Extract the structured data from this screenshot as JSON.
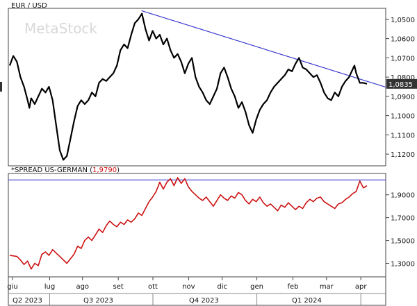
{
  "chart_data": [
    {
      "type": "line",
      "title": "EUR / USD",
      "y_inverted": true,
      "ylim": [
        1.045,
        1.125
      ],
      "yticks": [
        "1,0500",
        "1,0600",
        "1,0700",
        "1,0800",
        "1,0900",
        "1,1000",
        "1,1100",
        "1,1200"
      ],
      "ytick_values": [
        1.05,
        1.06,
        1.07,
        1.08,
        1.09,
        1.1,
        1.11,
        1.12
      ],
      "last_value": "1,0835",
      "series_color": "#000000",
      "trendline": {
        "color": "#3a3ad0",
        "points": [
          {
            "x": 0.369,
            "y": 1.0455
          },
          {
            "x": 1.0,
            "y": 1.0852
          }
        ]
      },
      "series": [
        {
          "x": 0.0,
          "y": 1.074
        },
        {
          "x": 0.01,
          "y": 1.069
        },
        {
          "x": 0.02,
          "y": 1.072
        },
        {
          "x": 0.03,
          "y": 1.08
        },
        {
          "x": 0.04,
          "y": 1.085
        },
        {
          "x": 0.05,
          "y": 1.092
        },
        {
          "x": 0.055,
          "y": 1.096
        },
        {
          "x": 0.06,
          "y": 1.091
        },
        {
          "x": 0.07,
          "y": 1.094
        },
        {
          "x": 0.08,
          "y": 1.09
        },
        {
          "x": 0.09,
          "y": 1.086
        },
        {
          "x": 0.1,
          "y": 1.088
        },
        {
          "x": 0.11,
          "y": 1.085
        },
        {
          "x": 0.12,
          "y": 1.092
        },
        {
          "x": 0.13,
          "y": 1.105
        },
        {
          "x": 0.14,
          "y": 1.118
        },
        {
          "x": 0.15,
          "y": 1.123
        },
        {
          "x": 0.16,
          "y": 1.121
        },
        {
          "x": 0.17,
          "y": 1.112
        },
        {
          "x": 0.18,
          "y": 1.103
        },
        {
          "x": 0.19,
          "y": 1.095
        },
        {
          "x": 0.2,
          "y": 1.092
        },
        {
          "x": 0.21,
          "y": 1.094
        },
        {
          "x": 0.22,
          "y": 1.092
        },
        {
          "x": 0.23,
          "y": 1.088
        },
        {
          "x": 0.24,
          "y": 1.09
        },
        {
          "x": 0.25,
          "y": 1.083
        },
        {
          "x": 0.26,
          "y": 1.081
        },
        {
          "x": 0.27,
          "y": 1.082
        },
        {
          "x": 0.28,
          "y": 1.08
        },
        {
          "x": 0.29,
          "y": 1.078
        },
        {
          "x": 0.3,
          "y": 1.074
        },
        {
          "x": 0.31,
          "y": 1.066
        },
        {
          "x": 0.32,
          "y": 1.063
        },
        {
          "x": 0.33,
          "y": 1.065
        },
        {
          "x": 0.34,
          "y": 1.058
        },
        {
          "x": 0.35,
          "y": 1.052
        },
        {
          "x": 0.36,
          "y": 1.05
        },
        {
          "x": 0.37,
          "y": 1.047
        },
        {
          "x": 0.38,
          "y": 1.055
        },
        {
          "x": 0.39,
          "y": 1.061
        },
        {
          "x": 0.4,
          "y": 1.056
        },
        {
          "x": 0.41,
          "y": 1.06
        },
        {
          "x": 0.42,
          "y": 1.058
        },
        {
          "x": 0.43,
          "y": 1.063
        },
        {
          "x": 0.44,
          "y": 1.06
        },
        {
          "x": 0.45,
          "y": 1.066
        },
        {
          "x": 0.46,
          "y": 1.07
        },
        {
          "x": 0.47,
          "y": 1.068
        },
        {
          "x": 0.48,
          "y": 1.072
        },
        {
          "x": 0.49,
          "y": 1.078
        },
        {
          "x": 0.5,
          "y": 1.073
        },
        {
          "x": 0.51,
          "y": 1.07
        },
        {
          "x": 0.52,
          "y": 1.08
        },
        {
          "x": 0.53,
          "y": 1.085
        },
        {
          "x": 0.54,
          "y": 1.088
        },
        {
          "x": 0.55,
          "y": 1.092
        },
        {
          "x": 0.56,
          "y": 1.094
        },
        {
          "x": 0.57,
          "y": 1.09
        },
        {
          "x": 0.58,
          "y": 1.086
        },
        {
          "x": 0.59,
          "y": 1.078
        },
        {
          "x": 0.6,
          "y": 1.075
        },
        {
          "x": 0.61,
          "y": 1.08
        },
        {
          "x": 0.62,
          "y": 1.086
        },
        {
          "x": 0.63,
          "y": 1.09
        },
        {
          "x": 0.64,
          "y": 1.096
        },
        {
          "x": 0.65,
          "y": 1.093
        },
        {
          "x": 0.66,
          "y": 1.098
        },
        {
          "x": 0.67,
          "y": 1.105
        },
        {
          "x": 0.68,
          "y": 1.109
        },
        {
          "x": 0.69,
          "y": 1.102
        },
        {
          "x": 0.7,
          "y": 1.097
        },
        {
          "x": 0.71,
          "y": 1.094
        },
        {
          "x": 0.72,
          "y": 1.092
        },
        {
          "x": 0.73,
          "y": 1.088
        },
        {
          "x": 0.74,
          "y": 1.085
        },
        {
          "x": 0.75,
          "y": 1.083
        },
        {
          "x": 0.76,
          "y": 1.081
        },
        {
          "x": 0.77,
          "y": 1.079
        },
        {
          "x": 0.78,
          "y": 1.076
        },
        {
          "x": 0.79,
          "y": 1.077
        },
        {
          "x": 0.8,
          "y": 1.073
        },
        {
          "x": 0.81,
          "y": 1.07
        },
        {
          "x": 0.82,
          "y": 1.075
        },
        {
          "x": 0.83,
          "y": 1.076
        },
        {
          "x": 0.84,
          "y": 1.078
        },
        {
          "x": 0.85,
          "y": 1.08
        },
        {
          "x": 0.86,
          "y": 1.079
        },
        {
          "x": 0.87,
          "y": 1.083
        },
        {
          "x": 0.88,
          "y": 1.088
        },
        {
          "x": 0.89,
          "y": 1.091
        },
        {
          "x": 0.9,
          "y": 1.092
        },
        {
          "x": 0.91,
          "y": 1.088
        },
        {
          "x": 0.92,
          "y": 1.09
        },
        {
          "x": 0.93,
          "y": 1.085
        },
        {
          "x": 0.94,
          "y": 1.082
        },
        {
          "x": 0.95,
          "y": 1.08
        },
        {
          "x": 0.96,
          "y": 1.076
        },
        {
          "x": 0.965,
          "y": 1.074
        },
        {
          "x": 0.97,
          "y": 1.078
        },
        {
          "x": 0.98,
          "y": 1.083
        },
        {
          "x": 0.99,
          "y": 1.083
        },
        {
          "x": 1.0,
          "y": 1.0835
        }
      ]
    },
    {
      "type": "line",
      "title": "*SPREAD US-GERMAN",
      "last_value": "1,9790",
      "ylim": [
        1.2,
        2.05
      ],
      "yticks": [
        "1,9000",
        "1,7000",
        "1,5000",
        "1,3000"
      ],
      "ytick_values": [
        1.9,
        1.7,
        1.5,
        1.3
      ],
      "series_color": "#cc1111",
      "reference_line": {
        "y": 2.03,
        "color": "#3a3ad0"
      },
      "series": [
        {
          "x": 0.0,
          "y": 1.37
        },
        {
          "x": 0.02,
          "y": 1.36
        },
        {
          "x": 0.03,
          "y": 1.33
        },
        {
          "x": 0.04,
          "y": 1.29
        },
        {
          "x": 0.05,
          "y": 1.32
        },
        {
          "x": 0.06,
          "y": 1.25
        },
        {
          "x": 0.07,
          "y": 1.3
        },
        {
          "x": 0.08,
          "y": 1.28
        },
        {
          "x": 0.09,
          "y": 1.38
        },
        {
          "x": 0.1,
          "y": 1.4
        },
        {
          "x": 0.11,
          "y": 1.37
        },
        {
          "x": 0.12,
          "y": 1.42
        },
        {
          "x": 0.13,
          "y": 1.39
        },
        {
          "x": 0.14,
          "y": 1.36
        },
        {
          "x": 0.15,
          "y": 1.33
        },
        {
          "x": 0.16,
          "y": 1.3
        },
        {
          "x": 0.17,
          "y": 1.34
        },
        {
          "x": 0.18,
          "y": 1.38
        },
        {
          "x": 0.19,
          "y": 1.45
        },
        {
          "x": 0.2,
          "y": 1.43
        },
        {
          "x": 0.21,
          "y": 1.5
        },
        {
          "x": 0.22,
          "y": 1.53
        },
        {
          "x": 0.23,
          "y": 1.5
        },
        {
          "x": 0.24,
          "y": 1.55
        },
        {
          "x": 0.25,
          "y": 1.6
        },
        {
          "x": 0.26,
          "y": 1.57
        },
        {
          "x": 0.27,
          "y": 1.63
        },
        {
          "x": 0.28,
          "y": 1.67
        },
        {
          "x": 0.29,
          "y": 1.64
        },
        {
          "x": 0.3,
          "y": 1.62
        },
        {
          "x": 0.31,
          "y": 1.66
        },
        {
          "x": 0.32,
          "y": 1.64
        },
        {
          "x": 0.33,
          "y": 1.68
        },
        {
          "x": 0.34,
          "y": 1.66
        },
        {
          "x": 0.35,
          "y": 1.69
        },
        {
          "x": 0.36,
          "y": 1.74
        },
        {
          "x": 0.37,
          "y": 1.72
        },
        {
          "x": 0.38,
          "y": 1.78
        },
        {
          "x": 0.39,
          "y": 1.84
        },
        {
          "x": 0.4,
          "y": 1.88
        },
        {
          "x": 0.41,
          "y": 1.93
        },
        {
          "x": 0.42,
          "y": 2.01
        },
        {
          "x": 0.43,
          "y": 1.95
        },
        {
          "x": 0.44,
          "y": 2.01
        },
        {
          "x": 0.45,
          "y": 2.04
        },
        {
          "x": 0.46,
          "y": 1.98
        },
        {
          "x": 0.47,
          "y": 2.05
        },
        {
          "x": 0.48,
          "y": 2.0
        },
        {
          "x": 0.49,
          "y": 2.04
        },
        {
          "x": 0.5,
          "y": 1.97
        },
        {
          "x": 0.51,
          "y": 1.93
        },
        {
          "x": 0.52,
          "y": 1.9
        },
        {
          "x": 0.53,
          "y": 1.87
        },
        {
          "x": 0.54,
          "y": 1.85
        },
        {
          "x": 0.55,
          "y": 1.88
        },
        {
          "x": 0.56,
          "y": 1.84
        },
        {
          "x": 0.57,
          "y": 1.8
        },
        {
          "x": 0.58,
          "y": 1.85
        },
        {
          "x": 0.59,
          "y": 1.9
        },
        {
          "x": 0.6,
          "y": 1.87
        },
        {
          "x": 0.61,
          "y": 1.85
        },
        {
          "x": 0.62,
          "y": 1.89
        },
        {
          "x": 0.63,
          "y": 1.87
        },
        {
          "x": 0.64,
          "y": 1.92
        },
        {
          "x": 0.65,
          "y": 1.9
        },
        {
          "x": 0.66,
          "y": 1.85
        },
        {
          "x": 0.67,
          "y": 1.82
        },
        {
          "x": 0.68,
          "y": 1.86
        },
        {
          "x": 0.69,
          "y": 1.84
        },
        {
          "x": 0.7,
          "y": 1.88
        },
        {
          "x": 0.71,
          "y": 1.83
        },
        {
          "x": 0.72,
          "y": 1.8
        },
        {
          "x": 0.73,
          "y": 1.82
        },
        {
          "x": 0.74,
          "y": 1.79
        },
        {
          "x": 0.75,
          "y": 1.76
        },
        {
          "x": 0.76,
          "y": 1.81
        },
        {
          "x": 0.77,
          "y": 1.79
        },
        {
          "x": 0.78,
          "y": 1.83
        },
        {
          "x": 0.79,
          "y": 1.8
        },
        {
          "x": 0.8,
          "y": 1.77
        },
        {
          "x": 0.81,
          "y": 1.8
        },
        {
          "x": 0.82,
          "y": 1.78
        },
        {
          "x": 0.83,
          "y": 1.83
        },
        {
          "x": 0.84,
          "y": 1.86
        },
        {
          "x": 0.85,
          "y": 1.84
        },
        {
          "x": 0.86,
          "y": 1.87
        },
        {
          "x": 0.87,
          "y": 1.88
        },
        {
          "x": 0.88,
          "y": 1.84
        },
        {
          "x": 0.89,
          "y": 1.82
        },
        {
          "x": 0.9,
          "y": 1.8
        },
        {
          "x": 0.91,
          "y": 1.78
        },
        {
          "x": 0.92,
          "y": 1.82
        },
        {
          "x": 0.93,
          "y": 1.83
        },
        {
          "x": 0.94,
          "y": 1.86
        },
        {
          "x": 0.95,
          "y": 1.88
        },
        {
          "x": 0.96,
          "y": 1.91
        },
        {
          "x": 0.97,
          "y": 1.93
        },
        {
          "x": 0.98,
          "y": 2.02
        },
        {
          "x": 0.99,
          "y": 1.96
        },
        {
          "x": 1.0,
          "y": 1.979
        }
      ]
    }
  ],
  "x_axis": {
    "months": [
      {
        "label": "giu",
        "x": 0.0
      },
      {
        "label": "lug",
        "x": 0.104
      },
      {
        "label": "ago",
        "x": 0.196
      },
      {
        "label": "set",
        "x": 0.296
      },
      {
        "label": "ott",
        "x": 0.393
      },
      {
        "label": "nov",
        "x": 0.493
      },
      {
        "label": "dic",
        "x": 0.587
      },
      {
        "label": "gen",
        "x": 0.684
      },
      {
        "label": "feb",
        "x": 0.785
      },
      {
        "label": "mar",
        "x": 0.879
      },
      {
        "label": "apr",
        "x": 0.975
      }
    ],
    "quarters": [
      {
        "label": "Q2 2023",
        "x": 0.0
      },
      {
        "label": "Q3 2023",
        "x": 0.21
      },
      {
        "label": "Q4 2023",
        "x": 0.51
      },
      {
        "label": "Q1 2024",
        "x": 0.8
      }
    ],
    "quarter_dividers": [
      0.104,
      0.393,
      0.684,
      0.975
    ]
  },
  "watermark": "MetaStock"
}
